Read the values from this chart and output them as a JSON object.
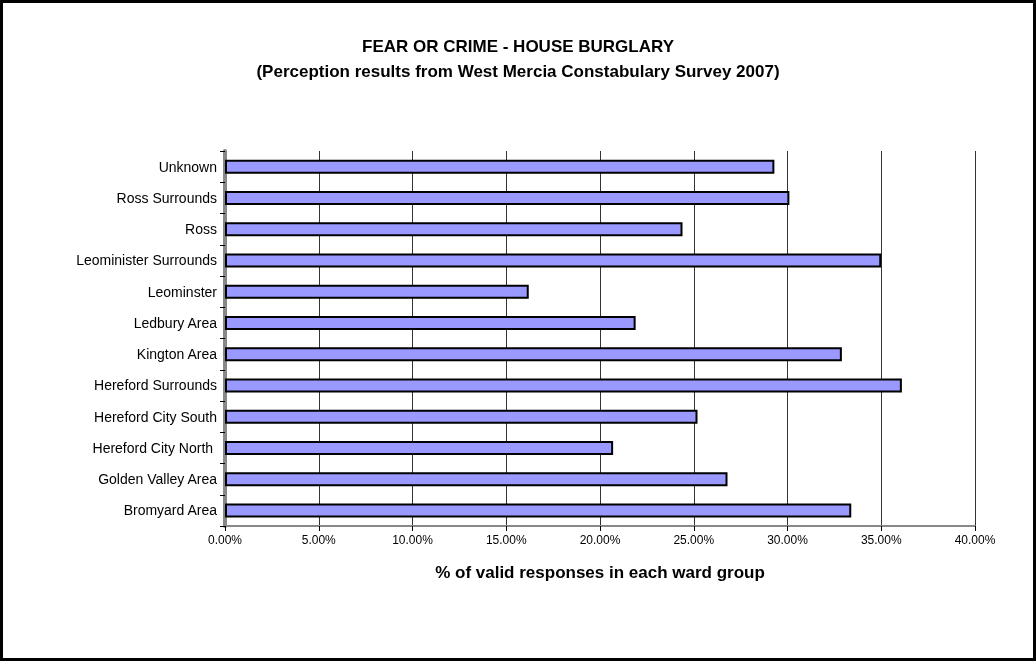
{
  "chart_data": {
    "type": "bar",
    "orientation": "horizontal",
    "title": "FEAR OR CRIME - HOUSE BURGLARY",
    "subtitle": "(Perception results from West Mercia Constabulary Survey 2007)",
    "xlabel": "% of valid responses in each ward group",
    "categories": [
      "Unknown",
      "Ross Surrounds",
      "Ross",
      "Leominister Surrounds",
      "Leominster",
      "Ledbury Area",
      "Kington Area",
      "Hereford Surrounds",
      "Hereford City South",
      "Hereford City North ",
      "Golden Valley Area",
      "Bromyard Area"
    ],
    "values": [
      29.3,
      30.1,
      24.4,
      35.0,
      16.2,
      21.9,
      32.9,
      36.1,
      25.2,
      20.7,
      26.8,
      33.4
    ],
    "color": "#9999ff",
    "xlim": [
      0,
      40
    ],
    "xticks": [
      {
        "value": 0,
        "label": "0.00%"
      },
      {
        "value": 5,
        "label": "5.00%"
      },
      {
        "value": 10,
        "label": "10.00%"
      },
      {
        "value": 15,
        "label": "15.00%"
      },
      {
        "value": 20,
        "label": "20.00%"
      },
      {
        "value": 25,
        "label": "25.00%"
      },
      {
        "value": 30,
        "label": "30.00%"
      },
      {
        "value": 35,
        "label": "35.00%"
      },
      {
        "value": 40,
        "label": "40.00%"
      }
    ],
    "grid": "x"
  }
}
